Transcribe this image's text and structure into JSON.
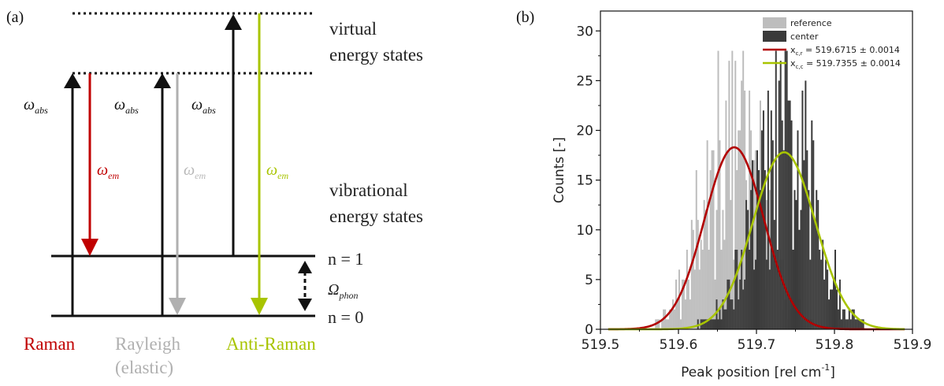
{
  "panel_a": {
    "label": "(a)",
    "virtual_label": [
      "virtual",
      "energy states"
    ],
    "vibrational_label": [
      "vibrational",
      "energy states"
    ],
    "n1_label": "n = 1",
    "n0_label": "n = 0",
    "phon_label": "Ω",
    "phon_sub": "phon",
    "abs_label": "ω",
    "abs_sub": "abs",
    "em_label": "ω",
    "em_sub": "em",
    "raman_label": "Raman",
    "rayleigh_label": [
      "Rayleigh",
      "(elastic)"
    ],
    "antiraman_label": "Anti-Raman",
    "colors": {
      "raman": "#c00000",
      "rayleigh": "#b0b0b0",
      "antiraman": "#a8c400",
      "black": "#1a1a1a"
    }
  },
  "panel_b": {
    "label": "(b)",
    "chart_data": {
      "type": "bar",
      "xlabel": "Peak position [rel cm",
      "xlabel_sup": "-1",
      "xlabel_end": "]",
      "ylabel": "Counts [-]",
      "xlim": [
        519.5,
        519.9
      ],
      "ylim": [
        0,
        32
      ],
      "xticks": [
        519.5,
        519.6,
        519.7,
        519.8,
        519.9
      ],
      "xtick_labels": [
        "519.5",
        "519.6",
        "519.7",
        "519.8",
        "519.9"
      ],
      "yticks": [
        0,
        5,
        10,
        15,
        20,
        25,
        30
      ],
      "ytick_labels": [
        "0",
        "5",
        "10",
        "15",
        "20",
        "25",
        "30"
      ],
      "legend": {
        "placement": "top-right",
        "items": [
          {
            "label": "reference",
            "kind": "box",
            "color": "#bdbdbd"
          },
          {
            "label": "center",
            "kind": "box",
            "color": "#3a3a3a"
          },
          {
            "label_main": "x",
            "label_sub": "c,r",
            "label_rest": " = 519.6715 ± 0.0014",
            "kind": "line",
            "color": "#b20000"
          },
          {
            "label_main": "x",
            "label_sub": "c,c",
            "label_rest": " = 519.7355 ± 0.0014",
            "kind": "line",
            "color": "#a8c400"
          }
        ]
      },
      "series": [
        {
          "name": "reference",
          "color": "#bdbdbd",
          "mu": 519.6715,
          "sigma": 0.038,
          "peak": 18.3,
          "max_spike": 28,
          "xmin": 519.5,
          "xmax": 519.86
        },
        {
          "name": "center",
          "color": "#3a3a3a",
          "mu": 519.7355,
          "sigma": 0.04,
          "peak": 17.8,
          "max_spike": 28,
          "xmin": 519.53,
          "xmax": 519.88
        }
      ],
      "fits": [
        {
          "name": "x_c,r",
          "color": "#b20000",
          "mu": 519.6715,
          "sigma": 0.038,
          "peak": 18.3
        },
        {
          "name": "x_c,c",
          "color": "#a8c400",
          "mu": 519.7355,
          "sigma": 0.04,
          "peak": 17.8
        }
      ],
      "bin_width": 0.002
    }
  }
}
